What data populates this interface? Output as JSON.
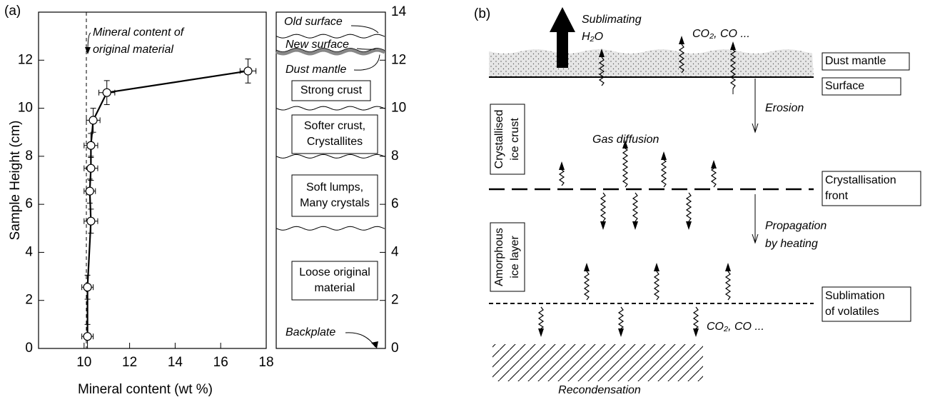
{
  "panel_a_label": "(a)",
  "panel_b_label": "(b)",
  "chart_data": {
    "type": "line",
    "xlabel": "Mineral content (wt %)",
    "ylabel": "Sample Height (cm)",
    "x": [
      10.15,
      10.15,
      10.3,
      10.25,
      10.3,
      10.3,
      10.4,
      11.0,
      17.2
    ],
    "series": [
      {
        "color": "#000000",
        "values": [
          0.5,
          2.55,
          5.3,
          6.55,
          7.5,
          8.45,
          9.5,
          10.65,
          11.55
        ],
        "xerr": [
          0.25,
          0.25,
          0.3,
          0.25,
          0.3,
          0.3,
          0.3,
          0.35,
          0.35
        ],
        "yerr": [
          0.5,
          0.5,
          0.5,
          0.5,
          0.5,
          0.5,
          0.5,
          0.5,
          0.5
        ]
      }
    ],
    "xlim": [
      8,
      18
    ],
    "xticks": [
      10,
      12,
      14,
      16,
      18
    ],
    "ylim": [
      0,
      14
    ],
    "yticks": [
      0,
      2,
      4,
      6,
      8,
      10,
      12
    ],
    "reference_line": {
      "x": 10.1,
      "label": [
        "Mineral content of",
        "original material"
      ]
    }
  },
  "layers": {
    "yticks": [
      0,
      2,
      4,
      6,
      8,
      10,
      12,
      14
    ],
    "old_surface": {
      "y": 13,
      "label": "Old surface"
    },
    "new_surface": {
      "y": 12.35,
      "label": "New surface"
    },
    "dust_mantle_label": "Dust mantle",
    "boundaries": [
      10,
      8,
      5
    ],
    "zones": [
      {
        "lines": [
          "Strong crust"
        ]
      },
      {
        "lines": [
          "Softer crust,",
          "Crystallites"
        ]
      },
      {
        "lines": [
          "Soft lumps,",
          "Many crystals"
        ]
      },
      {
        "lines": [
          "Loose original",
          "material"
        ]
      }
    ],
    "backplate": "Backplate"
  },
  "diagram": {
    "sublimating": [
      "Sublimating",
      "H₂O"
    ],
    "gases_top": "CO₂, CO ...",
    "dust_mantle": "Dust mantle",
    "surface": "Surface",
    "erosion": "Erosion",
    "gas_diffusion": "Gas diffusion",
    "crust": [
      "Crystallised",
      "ice crust"
    ],
    "front": [
      "Crystallisation",
      "front"
    ],
    "propagation": [
      "Propagation",
      "by heating"
    ],
    "amorphous": [
      "Amorphous",
      "ice layer"
    ],
    "sublimation": [
      "Sublimation",
      "of volatiles"
    ],
    "gases_bottom": "CO₂, CO ...",
    "recondensation": "Recondensation"
  }
}
